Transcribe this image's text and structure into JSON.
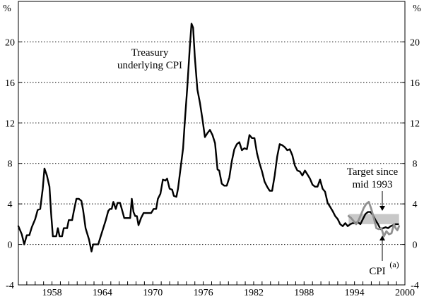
{
  "chart_data": {
    "type": "line",
    "title": "",
    "xlabel": "",
    "ylabel_left": "%",
    "ylabel_right": "%",
    "xlim": [
      1954,
      2000
    ],
    "ylim": [
      -4,
      24
    ],
    "yticks": [
      -4,
      0,
      4,
      8,
      12,
      16,
      20
    ],
    "xticks": [
      1958,
      1964,
      1970,
      1976,
      1982,
      1988,
      1994,
      2000
    ],
    "gridlines": "dotted horizontal at each y tick",
    "target_band": {
      "y0": 2,
      "y1": 3,
      "x_start": 1993.3,
      "x_end": 1999.3,
      "color": "#c8c8c8"
    },
    "annotations": {
      "treasury": [
        "Treasury",
        "underlying CPI"
      ],
      "target": [
        "Target since",
        "mid 1993"
      ],
      "cpi": "CPI",
      "cpi_sup": "(a)"
    },
    "series": [
      {
        "color": "#000000",
        "values": [
          [
            1954.0,
            1.8
          ],
          [
            1954.4,
            1.0
          ],
          [
            1954.7,
            0.0
          ],
          [
            1955.0,
            0.9
          ],
          [
            1955.3,
            0.9
          ],
          [
            1955.6,
            1.7
          ],
          [
            1956.0,
            2.5
          ],
          [
            1956.3,
            3.4
          ],
          [
            1956.6,
            3.5
          ],
          [
            1956.9,
            5.5
          ],
          [
            1957.1,
            7.5
          ],
          [
            1957.4,
            6.8
          ],
          [
            1957.7,
            5.7
          ],
          [
            1957.9,
            3.0
          ],
          [
            1958.1,
            0.8
          ],
          [
            1958.5,
            0.8
          ],
          [
            1958.7,
            1.6
          ],
          [
            1958.9,
            0.8
          ],
          [
            1959.2,
            0.8
          ],
          [
            1959.4,
            1.6
          ],
          [
            1959.8,
            1.6
          ],
          [
            1960.0,
            2.4
          ],
          [
            1960.4,
            2.4
          ],
          [
            1960.6,
            3.3
          ],
          [
            1960.9,
            4.5
          ],
          [
            1961.2,
            4.5
          ],
          [
            1961.5,
            4.3
          ],
          [
            1961.7,
            3.4
          ],
          [
            1962.0,
            1.6
          ],
          [
            1962.4,
            0.5
          ],
          [
            1962.7,
            -0.7
          ],
          [
            1962.9,
            0.0
          ],
          [
            1963.2,
            0.0
          ],
          [
            1963.5,
            0.0
          ],
          [
            1963.8,
            0.8
          ],
          [
            1964.1,
            1.6
          ],
          [
            1964.4,
            2.4
          ],
          [
            1964.7,
            3.3
          ],
          [
            1964.9,
            3.5
          ],
          [
            1965.1,
            3.5
          ],
          [
            1965.3,
            4.2
          ],
          [
            1965.6,
            3.5
          ],
          [
            1965.8,
            4.1
          ],
          [
            1966.1,
            4.1
          ],
          [
            1966.4,
            3.2
          ],
          [
            1966.6,
            2.6
          ],
          [
            1967.0,
            2.6
          ],
          [
            1967.3,
            2.6
          ],
          [
            1967.5,
            4.5
          ],
          [
            1967.7,
            3.2
          ],
          [
            1967.9,
            2.8
          ],
          [
            1968.1,
            2.8
          ],
          [
            1968.3,
            1.9
          ],
          [
            1968.6,
            2.6
          ],
          [
            1968.9,
            3.1
          ],
          [
            1969.2,
            3.1
          ],
          [
            1969.5,
            3.1
          ],
          [
            1969.8,
            3.1
          ],
          [
            1970.1,
            3.5
          ],
          [
            1970.4,
            3.5
          ],
          [
            1970.6,
            4.5
          ],
          [
            1970.9,
            5.0
          ],
          [
            1971.2,
            6.4
          ],
          [
            1971.5,
            6.3
          ],
          [
            1971.7,
            6.5
          ],
          [
            1972.0,
            5.5
          ],
          [
            1972.3,
            5.4
          ],
          [
            1972.5,
            4.8
          ],
          [
            1972.8,
            4.7
          ],
          [
            1973.0,
            5.5
          ],
          [
            1973.3,
            7.5
          ],
          [
            1973.6,
            9.5
          ],
          [
            1973.8,
            12.0
          ],
          [
            1974.1,
            15.5
          ],
          [
            1974.4,
            19.5
          ],
          [
            1974.6,
            21.8
          ],
          [
            1974.8,
            21.4
          ],
          [
            1975.0,
            18.5
          ],
          [
            1975.3,
            15.3
          ],
          [
            1975.6,
            14.0
          ],
          [
            1975.9,
            12.4
          ],
          [
            1976.2,
            10.6
          ],
          [
            1976.5,
            11.0
          ],
          [
            1976.8,
            11.3
          ],
          [
            1977.1,
            10.8
          ],
          [
            1977.4,
            10.0
          ],
          [
            1977.7,
            7.4
          ],
          [
            1977.9,
            7.3
          ],
          [
            1978.2,
            6.0
          ],
          [
            1978.5,
            5.8
          ],
          [
            1978.8,
            5.8
          ],
          [
            1979.1,
            6.6
          ],
          [
            1979.4,
            8.2
          ],
          [
            1979.7,
            9.4
          ],
          [
            1980.0,
            9.9
          ],
          [
            1980.3,
            10.1
          ],
          [
            1980.6,
            9.3
          ],
          [
            1980.9,
            9.5
          ],
          [
            1981.2,
            9.4
          ],
          [
            1981.5,
            10.8
          ],
          [
            1981.8,
            10.5
          ],
          [
            1982.1,
            10.5
          ],
          [
            1982.4,
            9.0
          ],
          [
            1982.7,
            8.0
          ],
          [
            1983.0,
            7.2
          ],
          [
            1983.3,
            6.2
          ],
          [
            1983.6,
            5.7
          ],
          [
            1983.9,
            5.3
          ],
          [
            1984.2,
            5.3
          ],
          [
            1984.5,
            6.8
          ],
          [
            1984.8,
            8.7
          ],
          [
            1985.1,
            9.9
          ],
          [
            1985.4,
            9.8
          ],
          [
            1985.7,
            9.6
          ],
          [
            1986.0,
            9.3
          ],
          [
            1986.3,
            9.4
          ],
          [
            1986.6,
            8.8
          ],
          [
            1986.9,
            7.8
          ],
          [
            1987.2,
            7.3
          ],
          [
            1987.5,
            7.2
          ],
          [
            1987.8,
            6.8
          ],
          [
            1988.1,
            7.3
          ],
          [
            1988.4,
            6.9
          ],
          [
            1988.7,
            6.5
          ],
          [
            1989.0,
            5.9
          ],
          [
            1989.3,
            5.7
          ],
          [
            1989.6,
            5.7
          ],
          [
            1989.9,
            6.4
          ],
          [
            1990.2,
            5.5
          ],
          [
            1990.5,
            5.2
          ],
          [
            1990.8,
            4.1
          ],
          [
            1991.1,
            3.7
          ],
          [
            1991.4,
            3.3
          ],
          [
            1991.7,
            2.8
          ],
          [
            1992.0,
            2.5
          ],
          [
            1992.3,
            2.0
          ],
          [
            1992.6,
            1.8
          ],
          [
            1992.9,
            2.1
          ],
          [
            1993.2,
            1.8
          ],
          [
            1993.5,
            2.0
          ],
          [
            1993.8,
            2.1
          ],
          [
            1994.1,
            2.1
          ],
          [
            1994.4,
            2.2
          ],
          [
            1994.7,
            2.0
          ],
          [
            1995.0,
            2.5
          ],
          [
            1995.3,
            3.0
          ],
          [
            1995.6,
            3.2
          ],
          [
            1995.9,
            3.2
          ],
          [
            1996.2,
            2.9
          ],
          [
            1996.5,
            2.4
          ],
          [
            1996.8,
            2.0
          ],
          [
            1997.1,
            1.5
          ],
          [
            1997.4,
            1.6
          ],
          [
            1997.7,
            1.7
          ],
          [
            1998.0,
            1.6
          ],
          [
            1998.3,
            1.8
          ],
          [
            1998.6,
            1.9
          ],
          [
            1998.9,
            2.0
          ],
          [
            1999.2,
            2.0
          ]
        ]
      },
      {
        "color": "#909090",
        "values": [
          [
            1993.3,
            2.8
          ],
          [
            1993.6,
            2.6
          ],
          [
            1993.9,
            2.3
          ],
          [
            1994.2,
            2.0
          ],
          [
            1994.5,
            2.4
          ],
          [
            1994.8,
            3.0
          ],
          [
            1995.1,
            3.6
          ],
          [
            1995.4,
            4.0
          ],
          [
            1995.7,
            4.2
          ],
          [
            1996.0,
            3.5
          ],
          [
            1996.3,
            2.6
          ],
          [
            1996.6,
            1.6
          ],
          [
            1996.9,
            1.5
          ],
          [
            1997.2,
            1.6
          ],
          [
            1997.5,
            0.8
          ],
          [
            1997.8,
            1.3
          ],
          [
            1998.1,
            1.0
          ],
          [
            1998.4,
            1.1
          ],
          [
            1998.7,
            2.0
          ],
          [
            1998.9,
            1.6
          ],
          [
            1999.1,
            1.4
          ],
          [
            1999.3,
            1.8
          ]
        ]
      }
    ]
  }
}
